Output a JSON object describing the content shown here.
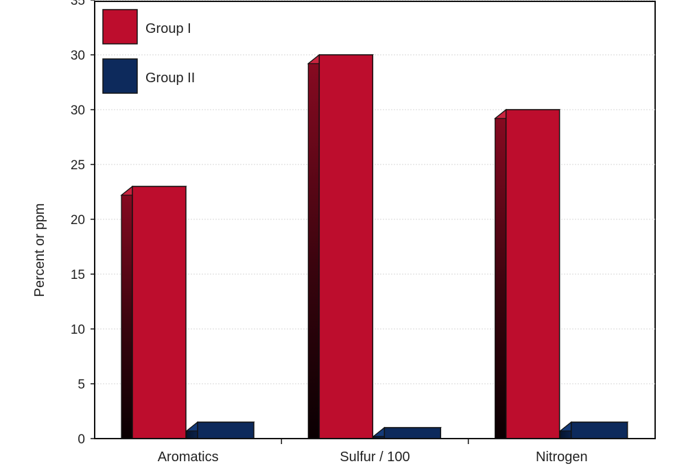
{
  "chart_data": {
    "type": "bar",
    "title": "",
    "xlabel": "",
    "ylabel": "Percent or ppm",
    "categories": [
      "Aromatics",
      "Sulfur / 100",
      "Nitrogen"
    ],
    "series": [
      {
        "name": "Group I",
        "values": [
          23,
          35,
          30
        ],
        "color": "#bd0d2d"
      },
      {
        "name": "Group II",
        "values": [
          1.5,
          1,
          1.5
        ],
        "color": "#0d2a5c"
      }
    ],
    "y_ticks": [
      "0",
      "5",
      "10",
      "15",
      "20",
      "25",
      "30",
      "30",
      "35"
    ],
    "ylim": [
      0,
      40
    ],
    "grid": true,
    "legend_position": "top-left"
  }
}
